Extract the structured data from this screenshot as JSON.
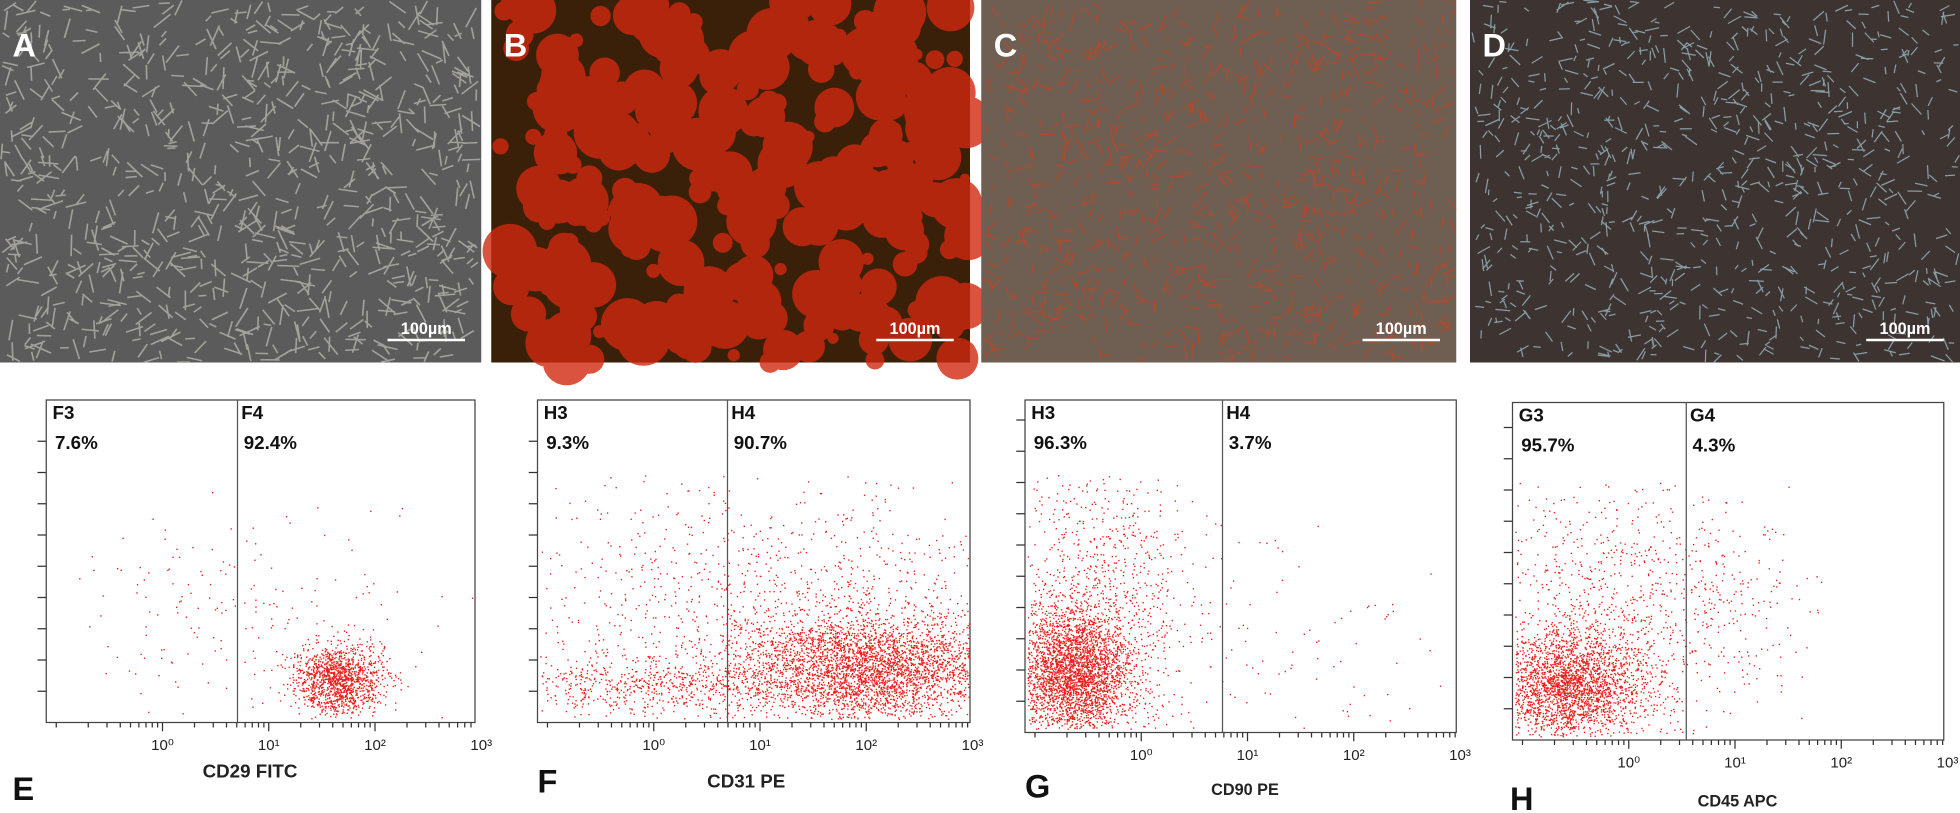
{
  "micrographs": [
    {
      "label": "A",
      "scale_bar": "100µm"
    },
    {
      "label": "B",
      "scale_bar": "100µm"
    },
    {
      "label": "C",
      "scale_bar": "100µm"
    },
    {
      "label": "D",
      "scale_bar": "100µm"
    }
  ],
  "flow_plots": [
    {
      "label": "E",
      "gates": [
        {
          "name": "F3",
          "percent": "7.6%"
        },
        {
          "name": "F4",
          "percent": "92.4%"
        }
      ],
      "x_axis": "CD29 FITC",
      "x_ticks": [
        "10⁰",
        "10¹",
        "10²",
        "10³"
      ]
    },
    {
      "label": "F",
      "gates": [
        {
          "name": "H3",
          "percent": "9.3%"
        },
        {
          "name": "H4",
          "percent": "90.7%"
        }
      ],
      "x_axis": "CD31 PE",
      "x_ticks": [
        "10⁰",
        "10¹",
        "10²",
        "10³"
      ]
    },
    {
      "label": "G",
      "gates": [
        {
          "name": "H3",
          "percent": "96.3%"
        },
        {
          "name": "H4",
          "percent": "3.7%"
        }
      ],
      "x_axis": "CD90 PE",
      "x_ticks": [
        "10⁰",
        "10¹",
        "10²",
        "10³"
      ]
    },
    {
      "label": "H",
      "gates": [
        {
          "name": "G3",
          "percent": "95.7%"
        },
        {
          "name": "G4",
          "percent": "4.3%"
        }
      ],
      "x_axis": "CD45 APC",
      "x_ticks": [
        "10⁰",
        "10¹",
        "10²",
        "10³"
      ]
    }
  ]
}
